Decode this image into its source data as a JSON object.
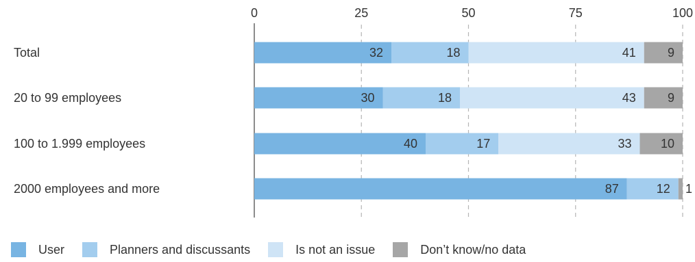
{
  "chart_data": {
    "type": "bar",
    "orientation": "horizontal",
    "stacked": true,
    "categories": [
      "Total",
      "20 to 99 employees",
      "100 to 1.999 employees",
      "2000 employees and more"
    ],
    "series": [
      {
        "name": "User",
        "color": "#78b4e2",
        "values": [
          32,
          30,
          40,
          87
        ]
      },
      {
        "name": "Planners and discussants",
        "color": "#a3cdee",
        "values": [
          18,
          18,
          17,
          12
        ]
      },
      {
        "name": "Is not an issue",
        "color": "#cfe4f6",
        "values": [
          41,
          43,
          33,
          0
        ]
      },
      {
        "name": "Don’t know/no data",
        "color": "#a6a6a6",
        "values": [
          9,
          9,
          10,
          1
        ]
      }
    ],
    "xlim": [
      0,
      100
    ],
    "xticks": [
      "0",
      "25",
      "50",
      "75",
      "100"
    ],
    "grid": true,
    "legend": "bottom"
  }
}
